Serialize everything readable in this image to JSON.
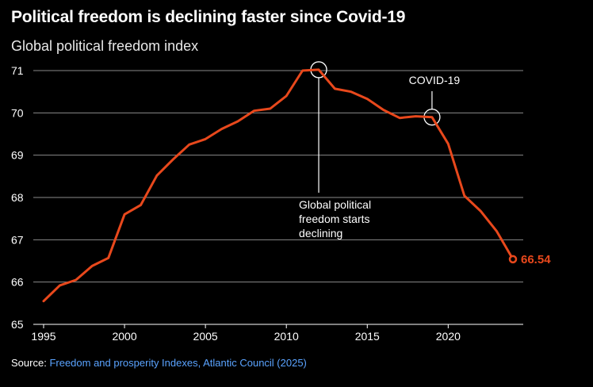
{
  "title": "Political freedom is declining faster since Covid-19",
  "subtitle": "Global political freedom index",
  "source_label": "Source:",
  "source_text": "Freedom and prosperity Indexes, Atlantic Council (2025)",
  "colors": {
    "line": "#e8481c",
    "background": "#000000",
    "link": "#5aa3ff"
  },
  "chart_data": {
    "type": "line",
    "title": "Political freedom is declining faster since Covid-19",
    "subtitle": "Global political freedom index",
    "xlabel": "",
    "ylabel": "",
    "xlim": [
      1995,
      2024
    ],
    "ylim": [
      65,
      71
    ],
    "x_ticks": [
      1995,
      2000,
      2005,
      2010,
      2015,
      2020
    ],
    "y_ticks": [
      65,
      66,
      67,
      68,
      69,
      70,
      71
    ],
    "grid": true,
    "series": [
      {
        "x": [
          1995,
          1996,
          1997,
          1998,
          1999,
          2000,
          2001,
          2002,
          2003,
          2004,
          2005,
          2006,
          2007,
          2008,
          2009,
          2010,
          2011,
          2012,
          2013,
          2014,
          2015,
          2016,
          2017,
          2018,
          2019,
          2020,
          2021,
          2022,
          2023,
          2024
        ],
        "values": [
          65.55,
          65.92,
          66.05,
          66.38,
          66.57,
          67.6,
          67.82,
          68.52,
          68.9,
          69.25,
          69.38,
          69.62,
          69.8,
          70.05,
          70.1,
          70.4,
          71.0,
          71.02,
          70.57,
          70.5,
          70.33,
          70.07,
          69.88,
          69.92,
          69.9,
          69.27,
          68.04,
          67.68,
          67.2,
          66.54
        ]
      }
    ],
    "end_label": "66.54",
    "annotations": [
      {
        "x": 2012,
        "y": 71.02,
        "lines": [
          "Global political",
          "freedom starts",
          "declining"
        ]
      },
      {
        "x": 2019,
        "y": 69.9,
        "lines": [
          "COVID-19"
        ]
      }
    ]
  }
}
